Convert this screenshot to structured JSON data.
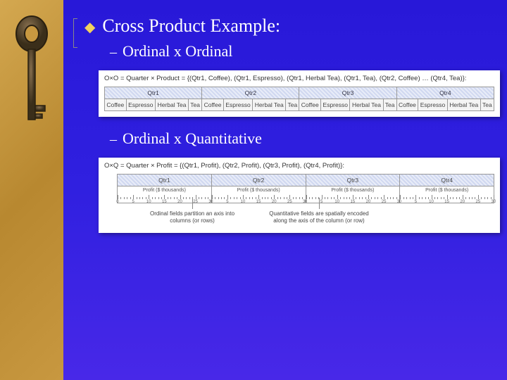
{
  "title": "Cross Product Example:",
  "sections": [
    {
      "subtitle": "Ordinal x Ordinal"
    },
    {
      "subtitle": "Ordinal x Quantitative"
    }
  ],
  "panel1": {
    "formula": "O×O = Quarter × Product = {(Qtr1, Coffee), (Qtr1, Espresso), (Qtr1, Herbal Tea), (Qtr1, Tea), (Qtr2, Coffee) … (Qtr4, Tea)}:",
    "quarters": [
      "Qtr1",
      "Qtr2",
      "Qtr3",
      "Qtr4"
    ],
    "products": [
      "Coffee",
      "Espresso",
      "Herbal Tea",
      "Tea"
    ],
    "header_bg": "#d0d8f0",
    "border_color": "#999999"
  },
  "panel2": {
    "formula": "O×Q = Quarter × Profit = {(Qtr1, Profit), (Qtr2, Profit), (Qtr3, Profit), (Qtr4, Profit)}:",
    "quarters": [
      "Qtr1",
      "Qtr2",
      "Qtr3",
      "Qtr4"
    ],
    "profit_label": "Profit ($ thousands)",
    "ruler": {
      "ticks": [
        0,
        5,
        10,
        15,
        20,
        25,
        30
      ],
      "major_every": 1
    },
    "annotations": [
      "Ordinal fields partition an axis into columns (or rows)",
      "Quantitative fields are spatially encoded along the axis of the column (or row)"
    ]
  },
  "colors": {
    "slide_bg": "#3020e0",
    "sidebar_bg": "#c89840",
    "bullet": "#f0d060",
    "text": "#ffffff"
  }
}
